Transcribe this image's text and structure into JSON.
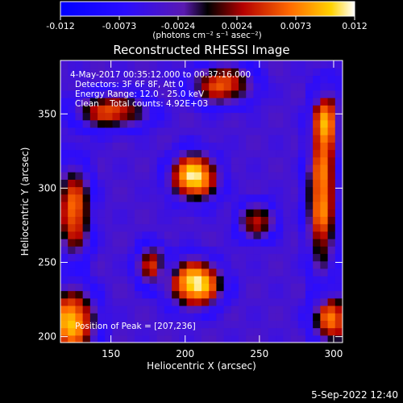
{
  "chart_data": {
    "type": "heatmap",
    "title": "Reconstructed RHESSI Image",
    "xlabel": "Heliocentric X (arcsec)",
    "ylabel": "Heliocentric Y (arcsec)",
    "xlim": [
      116,
      306
    ],
    "ylim": [
      196,
      386
    ],
    "x_ticks": [
      150,
      200,
      250,
      300
    ],
    "y_ticks": [
      200,
      250,
      300,
      350
    ],
    "colorbar": {
      "range": [
        -0.012,
        0.012
      ],
      "ticks": [
        "-0.012",
        "-0.0073",
        "-0.0024",
        "0.0024",
        "0.0073",
        "0.012"
      ],
      "label": "(photons cm⁻² s⁻¹ asec⁻²)"
    },
    "annotations": [
      "4-May-2017 00:35:12.000 to 00:37:16.000",
      "Detectors: 3F 6F 8F, Att 0",
      "Energy Range: 12.0 - 25.0 keV",
      "Clean    Total counts: 4.92E+03"
    ],
    "peak_label": "Position of Peak = [207,236]",
    "peak": [
      207,
      236
    ],
    "sources": [
      {
        "x": 207,
        "y": 236,
        "amp": 0.012,
        "sx": 11,
        "sy": 10
      },
      {
        "x": 206,
        "y": 308,
        "amp": 0.0115,
        "sx": 10,
        "sy": 10
      },
      {
        "x": 123,
        "y": 210,
        "amp": 0.01,
        "sx": 10,
        "sy": 14
      },
      {
        "x": 299,
        "y": 212,
        "amp": 0.007,
        "sx": 8,
        "sy": 10
      },
      {
        "x": 292,
        "y": 295,
        "amp": 0.008,
        "sx": 6,
        "sy": 30
      },
      {
        "x": 295,
        "y": 345,
        "amp": 0.006,
        "sx": 6,
        "sy": 14
      },
      {
        "x": 125,
        "y": 285,
        "amp": 0.007,
        "sx": 7,
        "sy": 18
      },
      {
        "x": 150,
        "y": 352,
        "amp": 0.0055,
        "sx": 14,
        "sy": 7
      },
      {
        "x": 225,
        "y": 370,
        "amp": 0.006,
        "sx": 12,
        "sy": 8
      },
      {
        "x": 178,
        "y": 248,
        "amp": 0.004,
        "sx": 6,
        "sy": 8
      },
      {
        "x": 248,
        "y": 278,
        "amp": 0.004,
        "sx": 7,
        "sy": 7
      }
    ],
    "background_level": -0.004
  },
  "footer": {
    "date": "5-Sep-2022 12:40"
  }
}
